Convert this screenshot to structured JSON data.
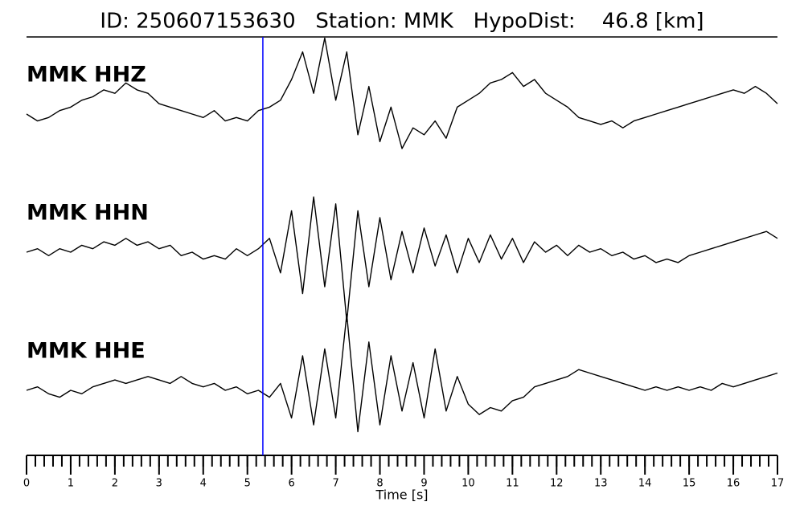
{
  "chart_data": {
    "type": "line",
    "title": "ID: 250607153630   Station: MMK   HypoDist:    46.8 [km]",
    "xlabel": "Time [s]",
    "xlim": [
      0,
      17
    ],
    "xticks": [
      0,
      1,
      2,
      3,
      4,
      5,
      6,
      7,
      8,
      9,
      10,
      11,
      12,
      13,
      14,
      15,
      16,
      17
    ],
    "xminor_step": 0.2,
    "ylim": [
      -1,
      1
    ],
    "label_color": "#4e9a06",
    "vline": {
      "x": 5.35,
      "color": "#0000ff"
    },
    "x": [
      0,
      0.25,
      0.5,
      0.75,
      1,
      1.25,
      1.5,
      1.75,
      2,
      2.25,
      2.5,
      2.75,
      3,
      3.25,
      3.5,
      3.75,
      4,
      4.25,
      4.5,
      4.75,
      5,
      5.25,
      5.5,
      5.75,
      6,
      6.25,
      6.5,
      6.75,
      7,
      7.25,
      7.5,
      7.75,
      8,
      8.25,
      8.5,
      8.75,
      9,
      9.25,
      9.5,
      9.75,
      10,
      10.25,
      10.5,
      10.75,
      11,
      11.25,
      11.5,
      11.75,
      12,
      12.25,
      12.5,
      12.75,
      13,
      13.25,
      13.5,
      13.75,
      14,
      14.25,
      14.5,
      14.75,
      15,
      15.25,
      15.5,
      15.75,
      16,
      16.25,
      16.5,
      16.75,
      17
    ],
    "series": [
      {
        "name": "MMK HHZ",
        "color": "#000000",
        "values": [
          0,
          -0.1,
          -0.05,
          0.05,
          0.1,
          0.2,
          0.25,
          0.35,
          0.3,
          0.45,
          0.35,
          0.3,
          0.15,
          0.1,
          0.05,
          0,
          -0.05,
          0.05,
          -0.1,
          -0.05,
          -0.1,
          0.05,
          0.1,
          0.2,
          0.5,
          0.9,
          0.3,
          1.1,
          0.2,
          0.9,
          -0.3,
          0.4,
          -0.4,
          0.1,
          -0.5,
          -0.2,
          -0.3,
          -0.1,
          -0.35,
          0.1,
          0.2,
          0.3,
          0.45,
          0.5,
          0.6,
          0.4,
          0.5,
          0.3,
          0.2,
          0.1,
          -0.05,
          -0.1,
          -0.15,
          -0.1,
          -0.2,
          -0.1,
          -0.05,
          0,
          0.05,
          0.1,
          0.15,
          0.2,
          0.25,
          0.3,
          0.35,
          0.3,
          0.4,
          0.3,
          0.15
        ]
      },
      {
        "name": "MMK HHN",
        "color": "#000000",
        "values": [
          0,
          0.05,
          -0.05,
          0.05,
          0,
          0.1,
          0.05,
          0.15,
          0.1,
          0.2,
          0.1,
          0.15,
          0.05,
          0.1,
          -0.05,
          0,
          -0.1,
          -0.05,
          -0.1,
          0.05,
          -0.05,
          0.05,
          0.2,
          -0.3,
          0.6,
          -0.6,
          0.8,
          -0.5,
          0.7,
          -1.0,
          0.6,
          -0.5,
          0.5,
          -0.4,
          0.3,
          -0.3,
          0.35,
          -0.2,
          0.25,
          -0.3,
          0.2,
          -0.15,
          0.25,
          -0.1,
          0.2,
          -0.15,
          0.15,
          0,
          0.1,
          -0.05,
          0.1,
          0,
          0.05,
          -0.05,
          0,
          -0.1,
          -0.05,
          -0.15,
          -0.1,
          -0.15,
          -0.05,
          0,
          0.05,
          0.1,
          0.15,
          0.2,
          0.25,
          0.3,
          0.2
        ]
      },
      {
        "name": "MMK HHE",
        "color": "#000000",
        "values": [
          0,
          0.05,
          -0.05,
          -0.1,
          0,
          -0.05,
          0.05,
          0.1,
          0.15,
          0.1,
          0.15,
          0.2,
          0.15,
          0.1,
          0.2,
          0.1,
          0.05,
          0.1,
          0,
          0.05,
          -0.05,
          0,
          -0.1,
          0.1,
          -0.4,
          0.5,
          -0.5,
          0.6,
          -0.4,
          1.1,
          -0.6,
          0.7,
          -0.5,
          0.5,
          -0.3,
          0.4,
          -0.4,
          0.6,
          -0.3,
          0.2,
          -0.2,
          -0.35,
          -0.25,
          -0.3,
          -0.15,
          -0.1,
          0.05,
          0.1,
          0.15,
          0.2,
          0.3,
          0.25,
          0.2,
          0.15,
          0.1,
          0.05,
          0,
          0.05,
          0,
          0.05,
          0,
          0.05,
          0,
          0.1,
          0.05,
          0.1,
          0.15,
          0.2,
          0.25
        ]
      }
    ]
  }
}
